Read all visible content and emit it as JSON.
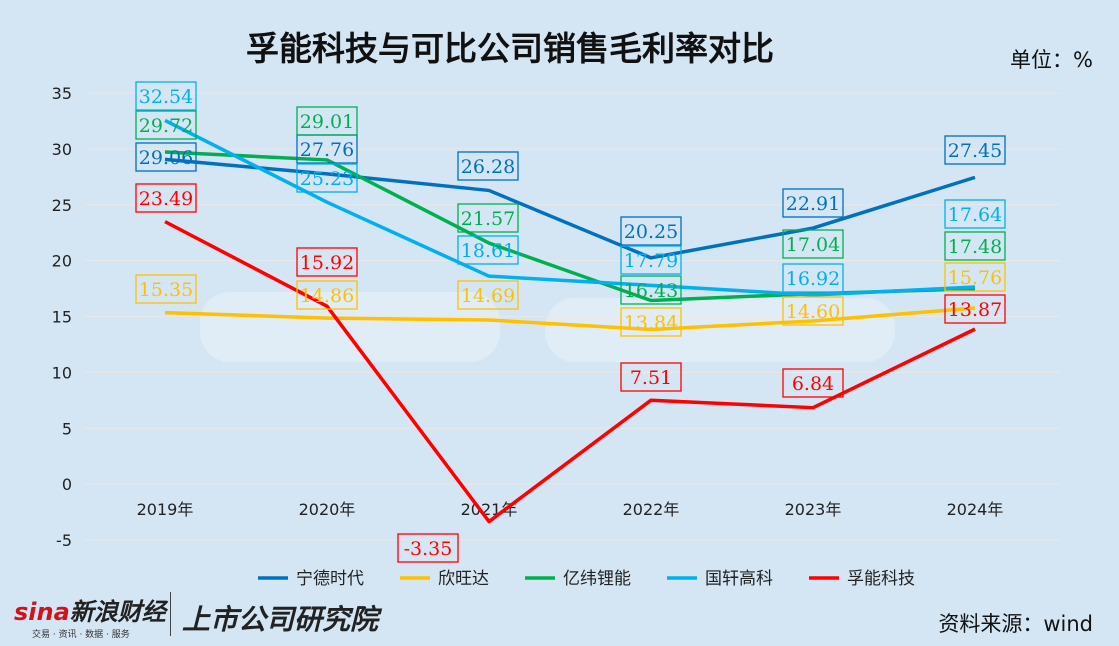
{
  "title": "孚能科技与可比公司销售毛利率对比",
  "unit": "单位：%",
  "source": "资料来源：wind",
  "watermark": {
    "brand": "sina新浪财经",
    "tagline": "交易 · 资讯 · 数据 · 服务",
    "institute": "上市公司研究院"
  },
  "chart_data": {
    "type": "line",
    "title": "孚能科技与可比公司销售毛利率对比",
    "xlabel": "",
    "ylabel": "",
    "categories": [
      "2019年",
      "2020年",
      "2021年",
      "2022年",
      "2023年",
      "2024年"
    ],
    "ylim": [
      -5,
      35
    ],
    "yticks": [
      -5,
      0,
      5,
      10,
      15,
      20,
      25,
      30,
      35
    ],
    "grid": true,
    "legend": "bottom",
    "data_labels": true,
    "series": [
      {
        "name": "宁德时代",
        "color": "#0070c0",
        "values": [
          29.06,
          27.76,
          26.28,
          20.25,
          22.91,
          27.45
        ]
      },
      {
        "name": "欣旺达",
        "color": "#ffc000",
        "values": [
          15.35,
          14.86,
          14.69,
          13.84,
          14.6,
          15.76
        ]
      },
      {
        "name": "亿纬锂能",
        "color": "#00b050",
        "values": [
          29.72,
          29.01,
          21.57,
          16.43,
          17.04,
          17.48
        ]
      },
      {
        "name": "国轩高科",
        "color": "#00b0f0",
        "values": [
          32.54,
          25.23,
          18.61,
          17.79,
          16.92,
          17.64
        ]
      },
      {
        "name": "孚能科技",
        "color": "#ff0000",
        "values": [
          23.49,
          15.92,
          -3.35,
          7.51,
          6.84,
          13.87
        ]
      }
    ]
  }
}
